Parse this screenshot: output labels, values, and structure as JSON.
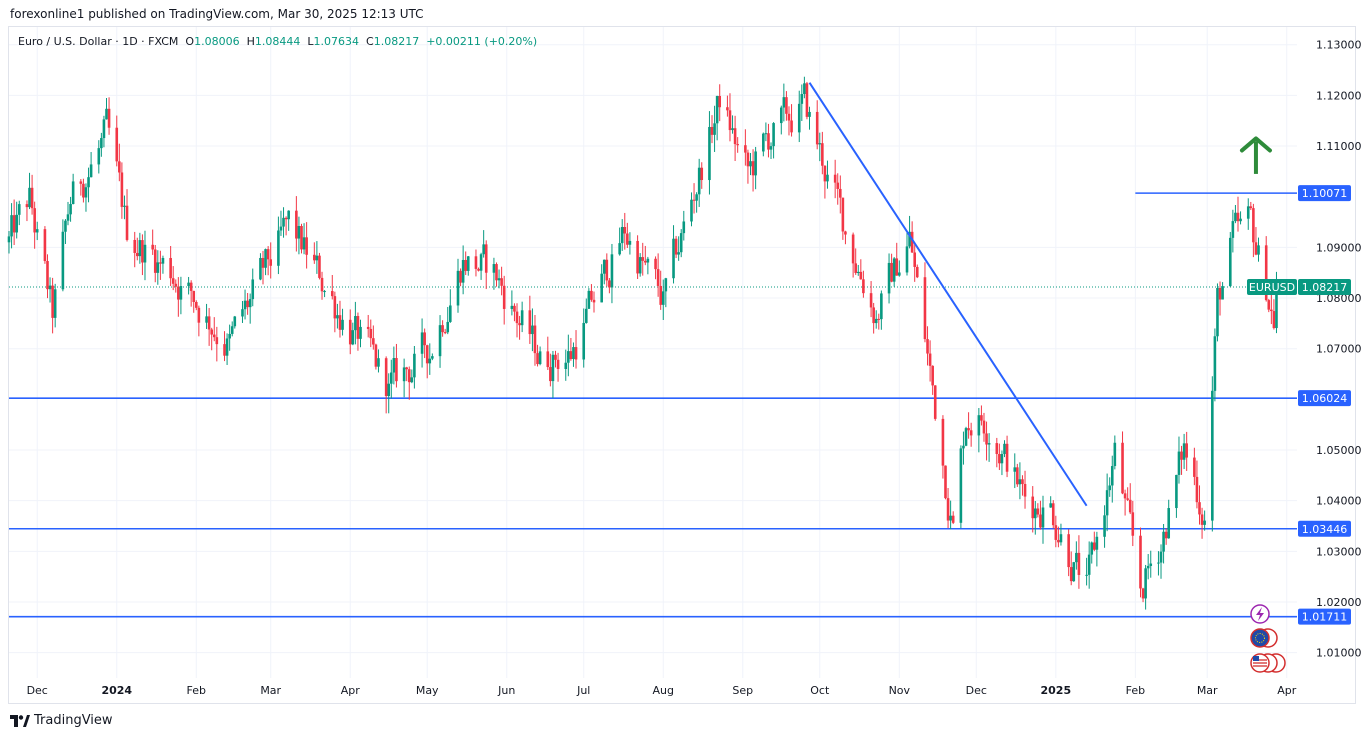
{
  "header": {
    "publisher": "forexonline1 published on TradingView.com, Mar 30, 2025 12:13 UTC"
  },
  "legend": {
    "symbol": "Euro / U.S. Dollar · 1D · FXCM",
    "o_label": "O",
    "o": "1.08006",
    "h_label": "H",
    "h": "1.08444",
    "l_label": "L",
    "l": "1.07634",
    "c_label": "C",
    "c": "1.08217",
    "change": "+0.00211 (+0.20%)"
  },
  "footer": {
    "brand": "TradingView"
  },
  "colors": {
    "up": "#089981",
    "down": "#F23645",
    "line": "#2962FF",
    "arrow": "#2E8B3A",
    "grid": "#F0F3FA"
  },
  "icons": [
    "lightning-icon",
    "eu-flag-icon",
    "us-flag-icon"
  ],
  "chart_data": {
    "type": "candlestick",
    "symbol": "EURUSD",
    "interval": "1D",
    "y_ticks": [
      "1.13000",
      "1.12000",
      "1.11000",
      "1.09000",
      "1.08000",
      "1.07000",
      "1.05000",
      "1.04000",
      "1.03000",
      "1.02000",
      "1.01000"
    ],
    "ylim": [
      1.005,
      1.1335
    ],
    "x_ticks": [
      {
        "label": "Dec",
        "date": "2023-12-01",
        "bold": false
      },
      {
        "label": "2024",
        "date": "2024-01-01",
        "bold": true
      },
      {
        "label": "Feb",
        "date": "2024-02-01",
        "bold": false
      },
      {
        "label": "Mar",
        "date": "2024-03-01",
        "bold": false
      },
      {
        "label": "Apr",
        "date": "2024-04-01",
        "bold": false
      },
      {
        "label": "May",
        "date": "2024-05-01",
        "bold": false
      },
      {
        "label": "Jun",
        "date": "2024-06-01",
        "bold": false
      },
      {
        "label": "Jul",
        "date": "2024-07-01",
        "bold": false
      },
      {
        "label": "Aug",
        "date": "2024-08-01",
        "bold": false
      },
      {
        "label": "Sep",
        "date": "2024-09-01",
        "bold": false
      },
      {
        "label": "Oct",
        "date": "2024-10-01",
        "bold": false
      },
      {
        "label": "Nov",
        "date": "2024-11-01",
        "bold": false
      },
      {
        "label": "Dec",
        "date": "2024-12-01",
        "bold": false
      },
      {
        "label": "2025",
        "date": "2025-01-01",
        "bold": true
      },
      {
        "label": "Feb",
        "date": "2025-02-01",
        "bold": false
      },
      {
        "label": "Mar",
        "date": "2025-03-01",
        "bold": false
      },
      {
        "label": "Apr",
        "date": "2025-04-01",
        "bold": false
      }
    ],
    "xlim": [
      "2023-11-20",
      "2025-04-05"
    ],
    "horizontal_levels": [
      {
        "value": 1.10071,
        "label": "1.10071",
        "from_date": "2025-02-01"
      },
      {
        "value": 1.06024,
        "label": "1.06024"
      },
      {
        "value": 1.03446,
        "label": "1.03446"
      },
      {
        "value": 1.01711,
        "label": "1.01711"
      }
    ],
    "trend_line": {
      "start": [
        "2024-09-27",
        1.1225
      ],
      "end": [
        "2025-01-13",
        1.039
      ]
    },
    "last_price": {
      "label": "EURUSD",
      "value": 1.08217,
      "text": "1.08217"
    },
    "arrow": {
      "direction": "up",
      "date": "2025-03-20",
      "y_from": 1.1045,
      "y_to": 1.1115
    },
    "anchors": [
      [
        "2023-11-20",
        1.091
      ],
      [
        "2023-11-28",
        1.099
      ],
      [
        "2023-12-07",
        1.076
      ],
      [
        "2023-12-14",
        1.099
      ],
      [
        "2023-12-28",
        1.112
      ],
      [
        "2024-01-05",
        1.093
      ],
      [
        "2024-01-23",
        1.085
      ],
      [
        "2024-02-14",
        1.071
      ],
      [
        "2024-03-08",
        1.094
      ],
      [
        "2024-03-19",
        1.085
      ],
      [
        "2024-04-16",
        1.062
      ],
      [
        "2024-05-02",
        1.07
      ],
      [
        "2024-05-15",
        1.088
      ],
      [
        "2024-05-27",
        1.085
      ],
      [
        "2024-06-14",
        1.068
      ],
      [
        "2024-06-26",
        1.069
      ],
      [
        "2024-07-17",
        1.093
      ],
      [
        "2024-08-01",
        1.079
      ],
      [
        "2024-08-23",
        1.119
      ],
      [
        "2024-09-03",
        1.104
      ],
      [
        "2024-09-12",
        1.112
      ],
      [
        "2024-09-25",
        1.118
      ],
      [
        "2024-10-10",
        1.095
      ],
      [
        "2024-10-23",
        1.077
      ],
      [
        "2024-11-05",
        1.092
      ],
      [
        "2024-11-22",
        1.035
      ],
      [
        "2024-11-27",
        1.057
      ],
      [
        "2024-12-06",
        1.056
      ],
      [
        "2024-12-20",
        1.04
      ],
      [
        "2024-12-30",
        1.039
      ],
      [
        "2025-01-13",
        1.022
      ],
      [
        "2025-01-24",
        1.049
      ],
      [
        "2025-02-03",
        1.022
      ],
      [
        "2025-02-11",
        1.032
      ],
      [
        "2025-02-20",
        1.05
      ],
      [
        "2025-02-28",
        1.038
      ],
      [
        "2025-03-05",
        1.079
      ],
      [
        "2025-03-11",
        1.091
      ],
      [
        "2025-03-18",
        1.094
      ],
      [
        "2025-03-27",
        1.076
      ],
      [
        "2025-03-28",
        1.0822
      ]
    ]
  }
}
